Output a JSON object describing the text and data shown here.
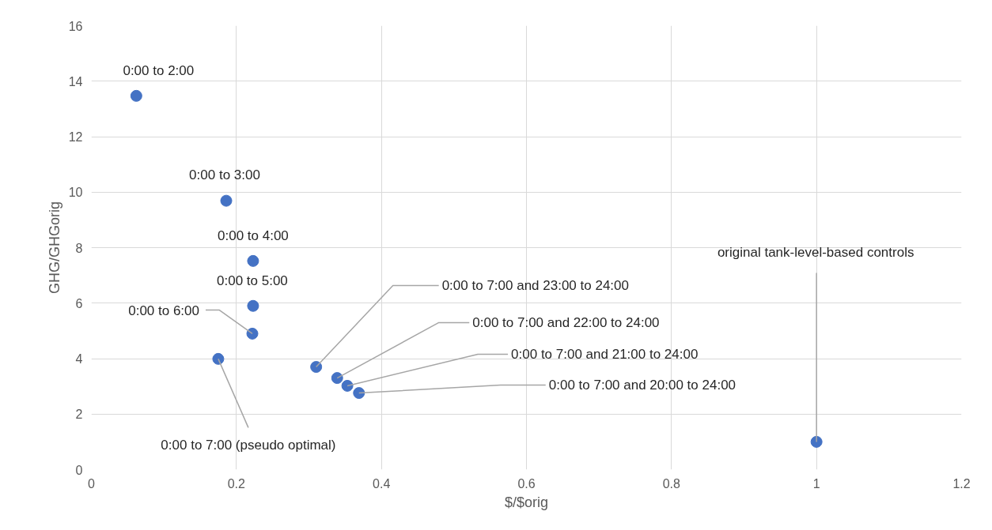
{
  "chart_data": {
    "type": "scatter",
    "xlabel": "$/$orig",
    "ylabel": "GHG/GHGorig",
    "x": [
      0.062,
      0.186,
      0.223,
      0.223,
      0.222,
      0.175,
      0.31,
      0.339,
      0.353,
      0.369,
      1.0
    ],
    "series": [
      {
        "color": "#4472c4",
        "values": [
          13.47,
          9.69,
          7.52,
          5.9,
          4.9,
          3.99,
          3.7,
          3.3,
          3.02,
          2.76,
          1.0
        ]
      }
    ],
    "xlim": [
      0,
      1.2
    ],
    "xticks": [
      0,
      0.2,
      0.4,
      0.6,
      0.8,
      1,
      1.2
    ],
    "ylim": [
      0,
      16
    ],
    "yticks": [
      0,
      2,
      4,
      6,
      8,
      10,
      12,
      14,
      16
    ],
    "grid": true,
    "marker": "circle",
    "annotations": [
      {
        "text": "0:00 to 2:00",
        "x": 0.062,
        "y": 13.47
      },
      {
        "text": "0:00 to 3:00",
        "x": 0.186,
        "y": 9.69
      },
      {
        "text": "0:00 to 4:00",
        "x": 0.223,
        "y": 7.52
      },
      {
        "text": "0:00 to 5:00",
        "x": 0.223,
        "y": 5.9
      },
      {
        "text": "0:00 to 6:00",
        "x": 0.222,
        "y": 4.9
      },
      {
        "text": "0:00 to 7:00 (pseudo optimal)",
        "x": 0.175,
        "y": 3.99
      },
      {
        "text": "0:00 to 7:00 and 23:00 to 24:00",
        "x": 0.31,
        "y": 3.7
      },
      {
        "text": "0:00 to 7:00 and 22:00 to 24:00",
        "x": 0.339,
        "y": 3.3
      },
      {
        "text": "0:00 to 7:00 and 21:00 to 24:00",
        "x": 0.353,
        "y": 3.02
      },
      {
        "text": "0:00 to 7:00 and 20:00 to 24:00",
        "x": 0.369,
        "y": 2.76
      },
      {
        "text": "original tank-level-based controls",
        "x": 1.0,
        "y": 1.0
      }
    ]
  }
}
